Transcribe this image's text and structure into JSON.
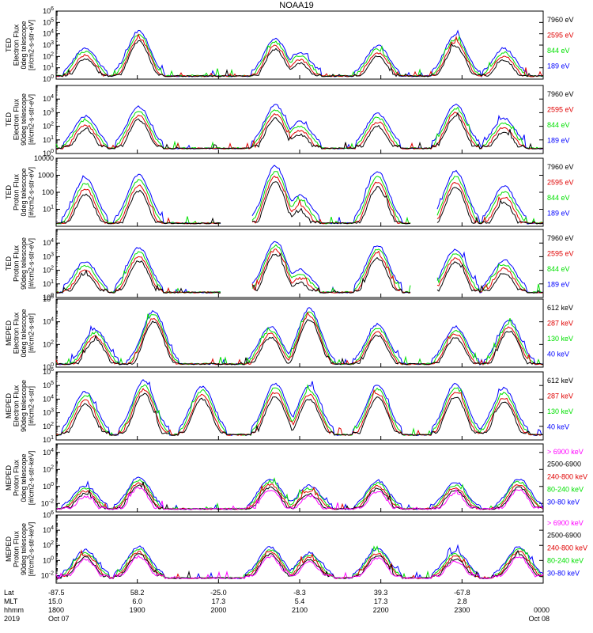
{
  "title": "NOAA19",
  "colors": {
    "black": "#000000",
    "red": "#e00000",
    "green": "#00e000",
    "blue": "#0000ff",
    "magenta": "#ff00ff"
  },
  "chart_data": [
    {
      "type": "line",
      "ylabel": [
        "TED",
        "Electron Flux",
        "0deg telescope",
        "[#/cm2-s-str-eV]"
      ],
      "yscale": "log",
      "ylim": [
        1,
        1000000
      ],
      "ticks": [
        {
          "v": 1,
          "label": "10"
        },
        {
          "v": 10,
          "label": "10"
        },
        {
          "v": 100,
          "label": "10"
        },
        {
          "v": 1000,
          "label": "10"
        },
        {
          "v": 10000,
          "label": "10"
        },
        {
          "v": 100000,
          "label": "10"
        },
        {
          "v": 1000000,
          "label": "10"
        }
      ],
      "legend": [
        {
          "text": "7960 eV",
          "color": "black"
        },
        {
          "text": "2595 eV",
          "color": "red"
        },
        {
          "text": "844 eV",
          "color": "green"
        },
        {
          "text": "189 eV",
          "color": "blue"
        }
      ],
      "events": [
        {
          "t": 6,
          "h": 2.4
        },
        {
          "t": 17,
          "h": 3.9
        },
        {
          "t": 45,
          "h": 3.2
        },
        {
          "t": 50,
          "h": 2.0
        },
        {
          "t": 66,
          "h": 2.6
        },
        {
          "t": 82,
          "h": 3.5
        },
        {
          "t": 92,
          "h": 2.3
        }
      ]
    },
    {
      "type": "line",
      "ylabel": [
        "TED",
        "Electron Flux",
        "90deg telescope",
        "[#/cm2-s-str-eV]"
      ],
      "yscale": "log",
      "ylim": [
        1,
        100000
      ],
      "ticks": [
        {
          "v": 1,
          "label": "10"
        },
        {
          "v": 10,
          "label": "10"
        },
        {
          "v": 100,
          "label": "10"
        },
        {
          "v": 1000,
          "label": "10"
        },
        {
          "v": 10000,
          "label": "10"
        }
      ],
      "legend": [
        {
          "text": "7960 eV",
          "color": "black"
        },
        {
          "text": "2595 eV",
          "color": "red"
        },
        {
          "text": "844 eV",
          "color": "green"
        },
        {
          "text": "189 eV",
          "color": "blue"
        }
      ],
      "events": [
        {
          "t": 6,
          "h": 2.2
        },
        {
          "t": 17,
          "h": 2.9
        },
        {
          "t": 45,
          "h": 3.0
        },
        {
          "t": 50,
          "h": 1.8
        },
        {
          "t": 66,
          "h": 2.4
        },
        {
          "t": 82,
          "h": 3.1
        },
        {
          "t": 92,
          "h": 2.0
        }
      ]
    },
    {
      "type": "line",
      "ylabel": [
        "TED",
        "Proton Flux",
        "0deg telescope",
        "[#/cm2-s-str-eV]"
      ],
      "yscale": "log",
      "ylim": [
        1,
        10000
      ],
      "ticks": [
        {
          "v": 10,
          "label": "10"
        },
        {
          "v": 100,
          "label": "100"
        },
        {
          "v": 1000,
          "label": "1000"
        },
        {
          "v": 10000,
          "label": "10000"
        }
      ],
      "legend": [
        {
          "text": "7960 eV",
          "color": "black"
        },
        {
          "text": "2595 eV",
          "color": "red"
        },
        {
          "text": "844 eV",
          "color": "green"
        },
        {
          "text": "189 eV",
          "color": "blue"
        }
      ],
      "events": [
        {
          "t": 6,
          "h": 2.6
        },
        {
          "t": 17,
          "h": 2.8
        },
        {
          "t": 45,
          "h": 3.3
        },
        {
          "t": 50,
          "h": 1.6
        },
        {
          "t": 66,
          "h": 3.0
        },
        {
          "t": 82,
          "h": 3.0
        },
        {
          "t": 92,
          "h": 2.1
        }
      ]
    },
    {
      "type": "line",
      "ylabel": [
        "TED",
        "Proton Flux",
        "90deg telescope",
        "[#/cm2-s-str-eV]"
      ],
      "yscale": "log",
      "ylim": [
        1,
        100000
      ],
      "ticks": [
        {
          "v": 1,
          "label": "10"
        },
        {
          "v": 10,
          "label": "10"
        },
        {
          "v": 100,
          "label": "10"
        },
        {
          "v": 1000,
          "label": "10"
        },
        {
          "v": 10000,
          "label": "10"
        }
      ],
      "legend": [
        {
          "text": "7960 eV",
          "color": "black"
        },
        {
          "text": "2595 eV",
          "color": "red"
        },
        {
          "text": "844 eV",
          "color": "green"
        },
        {
          "text": "189 eV",
          "color": "blue"
        }
      ],
      "events": [
        {
          "t": 6,
          "h": 2.1
        },
        {
          "t": 17,
          "h": 3.1
        },
        {
          "t": 45,
          "h": 3.6
        },
        {
          "t": 50,
          "h": 1.5
        },
        {
          "t": 66,
          "h": 3.3
        },
        {
          "t": 82,
          "h": 3.0
        },
        {
          "t": 92,
          "h": 2.2
        }
      ]
    },
    {
      "type": "line",
      "ylabel": [
        "MEPED",
        "Electron Flux",
        "0deg telescope",
        "[#/cm2-s-str]"
      ],
      "yscale": "log",
      "ylim": [
        1,
        1000000
      ],
      "ticks": [
        {
          "v": 1,
          "label": "10"
        },
        {
          "v": 100,
          "label": "10"
        },
        {
          "v": 10000,
          "label": "10"
        },
        {
          "v": 1000000,
          "label": "10"
        }
      ],
      "legend": [
        {
          "text": "612 keV",
          "color": "black"
        },
        {
          "text": "287 keV",
          "color": "red"
        },
        {
          "text": "130 keV",
          "color": "green"
        },
        {
          "text": "40 keV",
          "color": "blue"
        }
      ],
      "events": [
        {
          "t": 8,
          "h": 3.0
        },
        {
          "t": 20,
          "h": 4.6
        },
        {
          "t": 44,
          "h": 3.2
        },
        {
          "t": 52,
          "h": 4.8
        },
        {
          "t": 66,
          "h": 3.4
        },
        {
          "t": 82,
          "h": 3.2
        },
        {
          "t": 93,
          "h": 3.8
        }
      ]
    },
    {
      "type": "line",
      "ylabel": [
        "MEPED",
        "Electron Flux",
        "90deg telescope",
        "[#/cm2-s-str]"
      ],
      "yscale": "log",
      "ylim": [
        10,
        1000000
      ],
      "ticks": [
        {
          "v": 10,
          "label": "10"
        },
        {
          "v": 100,
          "label": "10"
        },
        {
          "v": 1000,
          "label": "10"
        },
        {
          "v": 10000,
          "label": "10"
        },
        {
          "v": 100000,
          "label": "10"
        },
        {
          "v": 1000000,
          "label": "10"
        }
      ],
      "legend": [
        {
          "text": "612 keV",
          "color": "black"
        },
        {
          "text": "287 keV",
          "color": "red"
        },
        {
          "text": "130 keV",
          "color": "green"
        },
        {
          "text": "40 keV",
          "color": "blue"
        }
      ],
      "events": [
        {
          "t": 6,
          "h": 3.0
        },
        {
          "t": 18,
          "h": 3.8
        },
        {
          "t": 30,
          "h": 3.4
        },
        {
          "t": 45,
          "h": 3.6
        },
        {
          "t": 52,
          "h": 3.4
        },
        {
          "t": 66,
          "h": 3.5
        },
        {
          "t": 82,
          "h": 3.6
        },
        {
          "t": 92,
          "h": 3.2
        }
      ]
    },
    {
      "type": "line",
      "ylabel": [
        "MEPED",
        "Proton Flux",
        "0deg telescope",
        "[#/cm2-s-str-keV]"
      ],
      "yscale": "log",
      "ylim": [
        0.001,
        100000
      ],
      "ticks": [
        {
          "v": 0.01,
          "label": "10"
        },
        {
          "v": 1,
          "label": "10"
        },
        {
          "v": 100,
          "label": "10"
        },
        {
          "v": 10000,
          "label": "10"
        }
      ],
      "legend": [
        {
          "text": "> 6900 keV",
          "color": "magenta"
        },
        {
          "text": "2500-6900",
          "color": "black"
        },
        {
          "text": "240-800 keV",
          "color": "red"
        },
        {
          "text": "80-240 keV",
          "color": "green"
        },
        {
          "text": "30-80 keV",
          "color": "blue"
        }
      ],
      "events": [
        {
          "t": 6,
          "h": 2.6
        },
        {
          "t": 17,
          "h": 3.6
        },
        {
          "t": 44,
          "h": 3.4
        },
        {
          "t": 52,
          "h": 2.6
        },
        {
          "t": 66,
          "h": 3.2
        },
        {
          "t": 82,
          "h": 3.0
        },
        {
          "t": 95,
          "h": 3.4
        }
      ]
    },
    {
      "type": "line",
      "ylabel": [
        "MEPED",
        "Proton Flux",
        "90deg telescope",
        "[#/cm2-s-str-keV]"
      ],
      "yscale": "log",
      "ylim": [
        0.001,
        1000000
      ],
      "ticks": [
        {
          "v": 0.01,
          "label": "10"
        },
        {
          "v": 1,
          "label": "10"
        },
        {
          "v": 100,
          "label": "10"
        },
        {
          "v": 10000,
          "label": "10"
        },
        {
          "v": 1000000,
          "label": "10"
        }
      ],
      "legend": [
        {
          "text": "> 6900 keV",
          "color": "magenta"
        },
        {
          "text": "2500-6900",
          "color": "black"
        },
        {
          "text": "240-800 keV",
          "color": "red"
        },
        {
          "text": "80-240 keV",
          "color": "green"
        },
        {
          "text": "30-80 keV",
          "color": "blue"
        }
      ],
      "events": [
        {
          "t": 6,
          "h": 3.4
        },
        {
          "t": 17,
          "h": 3.8
        },
        {
          "t": 44,
          "h": 3.8
        },
        {
          "t": 52,
          "h": 3.0
        },
        {
          "t": 66,
          "h": 3.6
        },
        {
          "t": 82,
          "h": 3.2
        },
        {
          "t": 95,
          "h": 3.8
        }
      ]
    }
  ],
  "xaxis": {
    "row_labels": [
      "Lat",
      "MLT",
      "hhmm",
      "2019"
    ],
    "columns": [
      {
        "lat": "-87.5",
        "mlt": "15.0",
        "hhmm": "1800",
        "date": "Oct 07"
      },
      {
        "lat": "58.2",
        "mlt": "6.0",
        "hhmm": "1900",
        "date": ""
      },
      {
        "lat": "-25.0",
        "mlt": "17.3",
        "hhmm": "2000",
        "date": ""
      },
      {
        "lat": "-8.3",
        "mlt": "5.4",
        "hhmm": "2100",
        "date": ""
      },
      {
        "lat": "39.3",
        "mlt": "17.3",
        "hhmm": "2200",
        "date": ""
      },
      {
        "lat": "-67.8",
        "mlt": "2.8",
        "hhmm": "2300",
        "date": ""
      },
      {
        "lat": "",
        "mlt": "",
        "hhmm": "0000",
        "date": "Oct 08"
      }
    ]
  }
}
